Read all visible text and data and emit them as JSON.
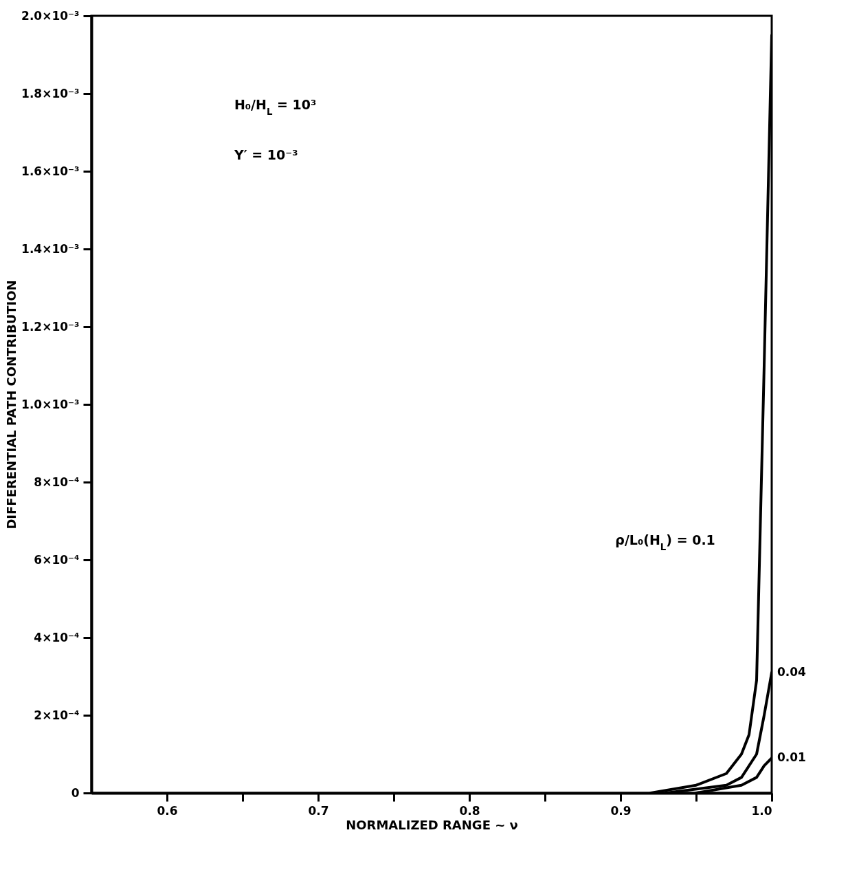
{
  "chart_data": {
    "type": "line",
    "xlabel": "NORMALIZED RANGE ~ ν",
    "ylabel": "DIFFERENTIAL PATH CONTRIBUTION",
    "xlim": [
      0.55,
      1.0
    ],
    "xticks": [
      0.6,
      {
        "value": 0.65,
        "label": null
      },
      0.7,
      {
        "value": 0.75,
        "label": null
      },
      0.8,
      {
        "value": 0.85,
        "label": null
      },
      0.9,
      {
        "value": 0.95,
        "label": null
      },
      {
        "value": 1.0,
        "label": "1.0"
      }
    ],
    "ylim": [
      0,
      0.002
    ],
    "yticks": [
      0,
      {
        "value": 0.0002,
        "label": "2×10⁻⁴"
      },
      {
        "value": 0.0004,
        "label": "4×10⁻⁴"
      },
      {
        "value": 0.0006,
        "label": "6×10⁻⁴"
      },
      {
        "value": 0.0008,
        "label": "8×10⁻⁴"
      },
      {
        "value": 0.001,
        "label": "1.0×10⁻³"
      },
      {
        "value": 0.0012,
        "label": "1.2×10⁻³"
      },
      {
        "value": 0.0014,
        "label": "1.4×10⁻³"
      },
      {
        "value": 0.0016,
        "label": "1.6×10⁻³"
      },
      {
        "value": 0.0018,
        "label": "1.8×10⁻³"
      },
      {
        "value": 0.002,
        "label": "2.0×10⁻³"
      }
    ],
    "series": [
      {
        "color": "#000000",
        "x": [
          0.92,
          0.95,
          0.97,
          0.98,
          0.985,
          0.99,
          0.995,
          1.0
        ],
        "values": [
          0,
          2e-05,
          5e-05,
          0.0001,
          0.00015,
          0.00029,
          0.0011,
          0.00195
        ]
      },
      {
        "name": "0.04",
        "color": "#000000",
        "x": [
          0.93,
          0.97,
          0.98,
          0.99,
          0.995,
          1.0
        ],
        "values": [
          0,
          2e-05,
          4e-05,
          0.0001,
          0.0002,
          0.00031
        ]
      },
      {
        "name": "0.01",
        "color": "#000000",
        "x": [
          0.95,
          0.98,
          0.99,
          0.995,
          1.0
        ],
        "values": [
          0,
          2e-05,
          4e-05,
          7e-05,
          9e-05
        ]
      }
    ],
    "annotations": [
      "H₀/H$_{L}$ = 10³",
      "Y′ = 10⁻³",
      "ρ/L₀(H$_{L}$) = 0.1"
    ],
    "marker": "none",
    "line_style": "solid"
  }
}
